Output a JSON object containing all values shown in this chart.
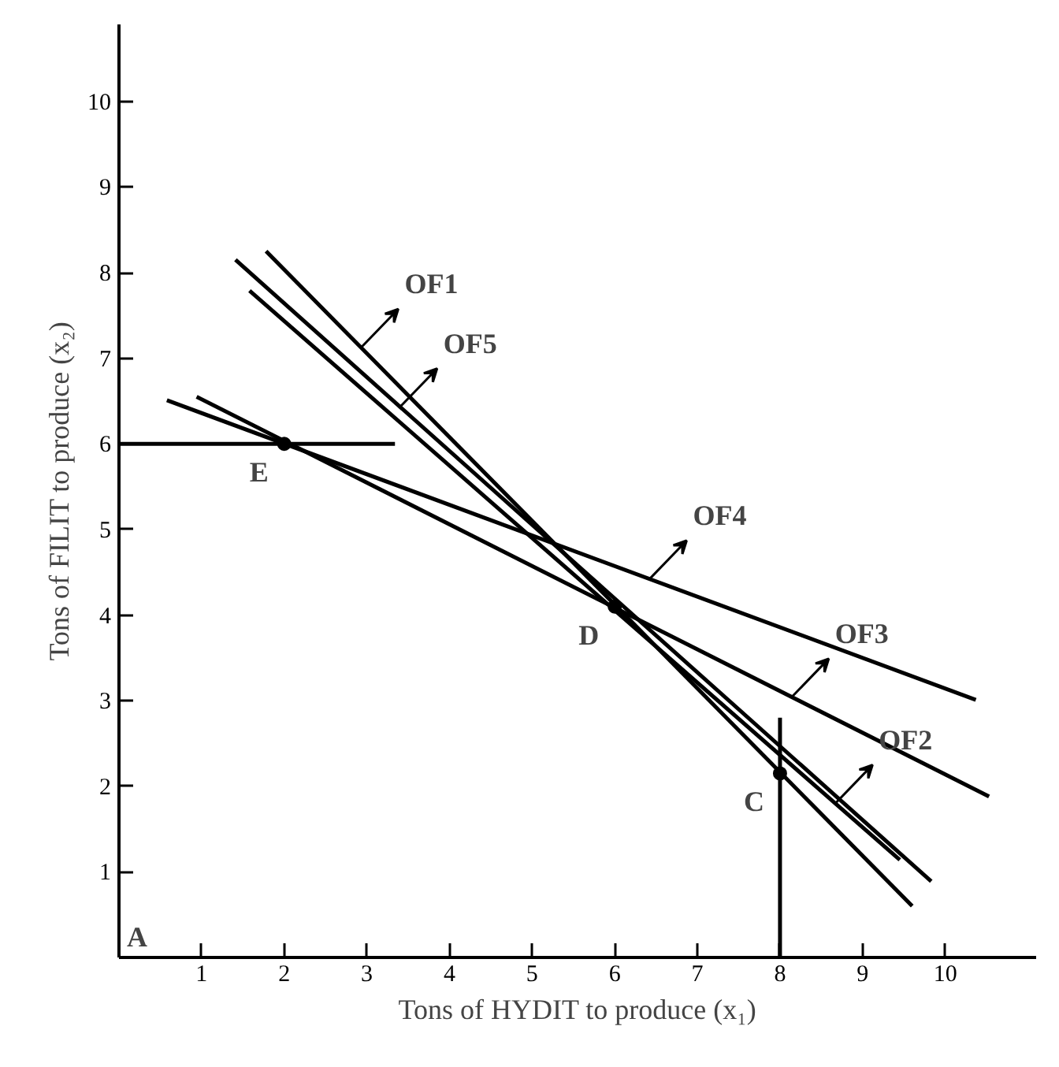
{
  "chart_data": {
    "type": "line",
    "xlabel": "Tons of HYDIT to produce (x₁)",
    "ylabel": "Tons of FILIT to produce (x₂)",
    "xlim": [
      0,
      11.1
    ],
    "ylim": [
      0,
      10.9
    ],
    "xticks": [
      1,
      2,
      3,
      4,
      5,
      6,
      7,
      8,
      9,
      10
    ],
    "yticks": [
      1,
      2,
      3,
      4,
      5,
      6,
      7,
      8,
      9,
      10
    ],
    "grid": false,
    "series": [
      {
        "color": "#000000",
        "x": [
          0,
          3.34
        ],
        "values": [
          6,
          6
        ]
      },
      {
        "color": "#000000",
        "x": [
          8,
          8
        ],
        "values": [
          0,
          2.8
        ]
      },
      {
        "color": "#000000",
        "x": [
          1.78,
          9.6
        ],
        "values": [
          8.25,
          0.6
        ]
      },
      {
        "color": "#000000",
        "x": [
          1.41,
          9.83
        ],
        "values": [
          8.15,
          0.89
        ]
      },
      {
        "color": "#000000",
        "x": [
          1.58,
          9.45
        ],
        "values": [
          7.79,
          1.14
        ]
      },
      {
        "color": "#000000",
        "x": [
          0.58,
          10.37
        ],
        "values": [
          6.51,
          3.01
        ]
      },
      {
        "color": "#000000",
        "x": [
          0.94,
          10.53
        ],
        "values": [
          6.55,
          1.88
        ]
      },
      {
        "type": "scatter",
        "color": "#000000",
        "x": [
          2,
          6,
          8
        ],
        "values": [
          6,
          4.1,
          2.15
        ]
      }
    ],
    "annotations": [
      {
        "text": "OF1",
        "x": 2.93,
        "y": 7.125
      },
      {
        "text": "OF5",
        "x": 3.4,
        "y": 6.43
      },
      {
        "text": "OF4",
        "x": 6.42,
        "y": 4.42
      },
      {
        "text": "OF3",
        "x": 8.14,
        "y": 3.04
      },
      {
        "text": "OF2",
        "x": 8.67,
        "y": 1.8
      },
      {
        "text": "E",
        "x": 2,
        "y": 6
      },
      {
        "text": "D",
        "x": 6,
        "y": 4.1
      },
      {
        "text": "C",
        "x": 8,
        "y": 2.15
      },
      "A"
    ]
  }
}
